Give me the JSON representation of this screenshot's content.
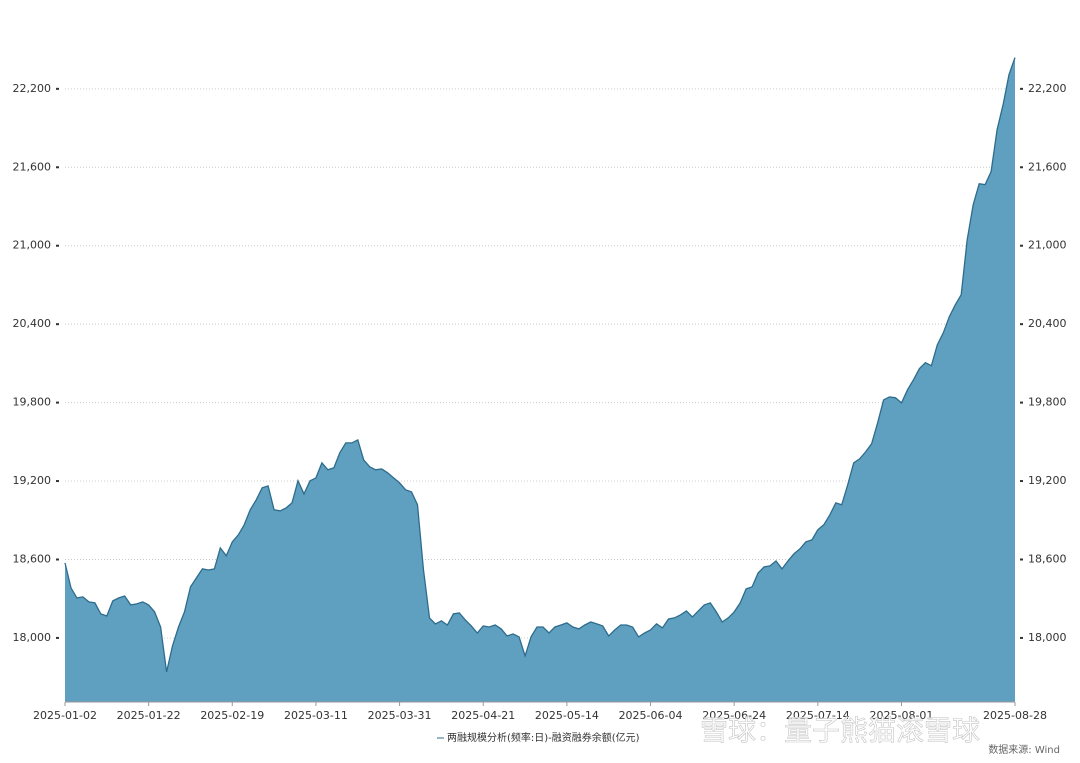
{
  "chart_data": {
    "type": "area",
    "categories": [
      "2025-01-02",
      null,
      null,
      null,
      null,
      null,
      null,
      null,
      null,
      null,
      null,
      null,
      null,
      null,
      "2025-01-22",
      null,
      null,
      null,
      null,
      null,
      null,
      null,
      null,
      null,
      null,
      null,
      null,
      null,
      "2025-02-19",
      null,
      null,
      null,
      null,
      null,
      null,
      null,
      null,
      null,
      null,
      null,
      null,
      null,
      "2025-03-11",
      null,
      null,
      null,
      null,
      null,
      null,
      null,
      null,
      null,
      null,
      null,
      null,
      null,
      "2025-03-31",
      null,
      null,
      null,
      null,
      null,
      null,
      null,
      null,
      null,
      null,
      null,
      null,
      null,
      "2025-04-21",
      null,
      null,
      null,
      null,
      null,
      null,
      null,
      null,
      null,
      null,
      null,
      null,
      null,
      "2025-05-14",
      null,
      null,
      null,
      null,
      null,
      null,
      null,
      null,
      null,
      null,
      null,
      null,
      null,
      "2025-06-04",
      null,
      null,
      null,
      null,
      null,
      null,
      null,
      null,
      null,
      null,
      null,
      null,
      null,
      "2025-06-24",
      null,
      null,
      null,
      null,
      null,
      null,
      null,
      null,
      null,
      null,
      null,
      null,
      null,
      "2025-07-14",
      null,
      null,
      null,
      null,
      null,
      null,
      null,
      null,
      null,
      null,
      null,
      null,
      null,
      "2025-08-01",
      null,
      null,
      null,
      null,
      null,
      null,
      null,
      null,
      null,
      null,
      null,
      null,
      null,
      null,
      null,
      null,
      null,
      null,
      "2025-08-28"
    ],
    "series": [
      {
        "name": "两融规模分析(频率:日)-融资融券余额(亿元)",
        "color": "#5f9fbf",
        "line_color": "#2e6c8c",
        "values": [
          18574,
          18383,
          18306,
          18314,
          18276,
          18268,
          18184,
          18168,
          18283,
          18306,
          18321,
          18253,
          18260,
          18276,
          18253,
          18199,
          18084,
          17740,
          17939,
          18084,
          18199,
          18390,
          18459,
          18528,
          18520,
          18528,
          18689,
          18628,
          18735,
          18788,
          18865,
          18980,
          19056,
          19148,
          19163,
          18980,
          18972,
          18995,
          19033,
          19202,
          19102,
          19202,
          19224,
          19339,
          19286,
          19301,
          19416,
          19492,
          19492,
          19515,
          19362,
          19309,
          19286,
          19293,
          19263,
          19224,
          19186,
          19133,
          19117,
          19018,
          18520,
          18153,
          18107,
          18130,
          18099,
          18184,
          18191,
          18138,
          18092,
          18038,
          18092,
          18084,
          18099,
          18069,
          18015,
          18031,
          18008,
          17862,
          18008,
          18084,
          18084,
          18038,
          18084,
          18099,
          18115,
          18084,
          18069,
          18099,
          18122,
          18107,
          18092,
          18015,
          18061,
          18099,
          18099,
          18084,
          18008,
          18038,
          18061,
          18107,
          18077,
          18145,
          18153,
          18176,
          18207,
          18161,
          18207,
          18253,
          18268,
          18199,
          18122,
          18153,
          18199,
          18268,
          18375,
          18390,
          18497,
          18543,
          18551,
          18589,
          18528,
          18589,
          18643,
          18681,
          18735,
          18750,
          18827,
          18865,
          18941,
          19033,
          19018,
          19171,
          19339,
          19370,
          19423,
          19485,
          19645,
          19821,
          19844,
          19837,
          19798,
          19898,
          19974,
          20059,
          20105,
          20082,
          20242,
          20334,
          20457,
          20548,
          20625,
          21046,
          21314,
          21474,
          21467,
          21566,
          21888,
          22079,
          22309,
          22439
        ]
      }
    ],
    "ylim": [
      17510,
      22650
    ],
    "yticks": [
      {
        "value": 18000,
        "label": "18,000"
      },
      {
        "value": 18600,
        "label": "18,600"
      },
      {
        "value": 19200,
        "label": "19,200"
      },
      {
        "value": 19800,
        "label": "19,800"
      },
      {
        "value": 20400,
        "label": "20,400"
      },
      {
        "value": 21000,
        "label": "21,000"
      },
      {
        "value": 21600,
        "label": "21,600"
      },
      {
        "value": 22200,
        "label": "22,200"
      }
    ],
    "grid": true,
    "legend": "bottom",
    "source": "数据来源: Wind",
    "watermark": "雪球：量子熊猫滚雪球"
  }
}
